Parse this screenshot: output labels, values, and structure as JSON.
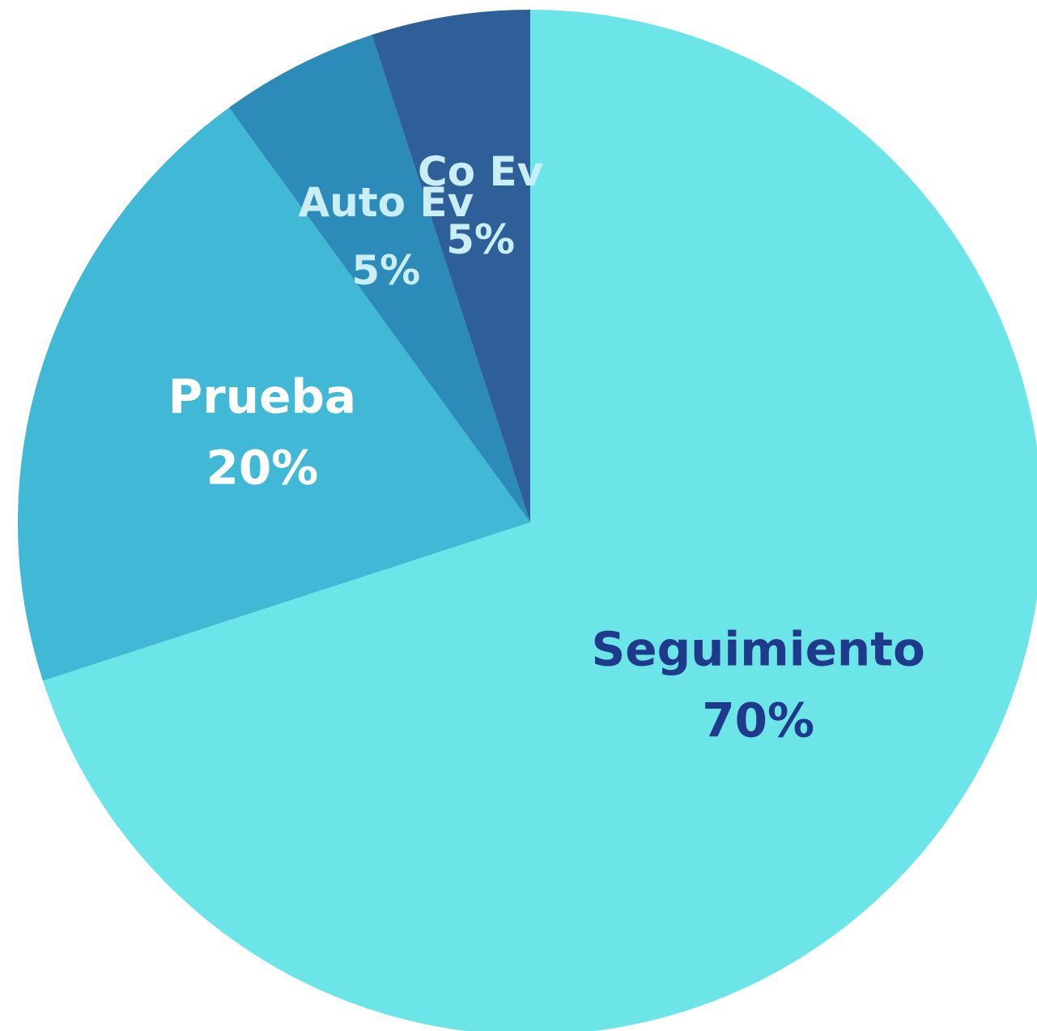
{
  "chart_data": {
    "type": "pie",
    "categories": [
      "Seguimiento",
      "Prueba",
      "Auto Ev",
      "Co Ev"
    ],
    "values": [
      70,
      20,
      5,
      5
    ],
    "value_labels": [
      "70%",
      "20%",
      "5%",
      "5%"
    ],
    "colors": [
      "#6ce5e8",
      "#41b8d5",
      "#2d8bba",
      "#2f5f98"
    ],
    "label_colors": [
      "#1f3a8a",
      "#ffffff",
      "#c9eef5",
      "#c9eef5"
    ]
  }
}
